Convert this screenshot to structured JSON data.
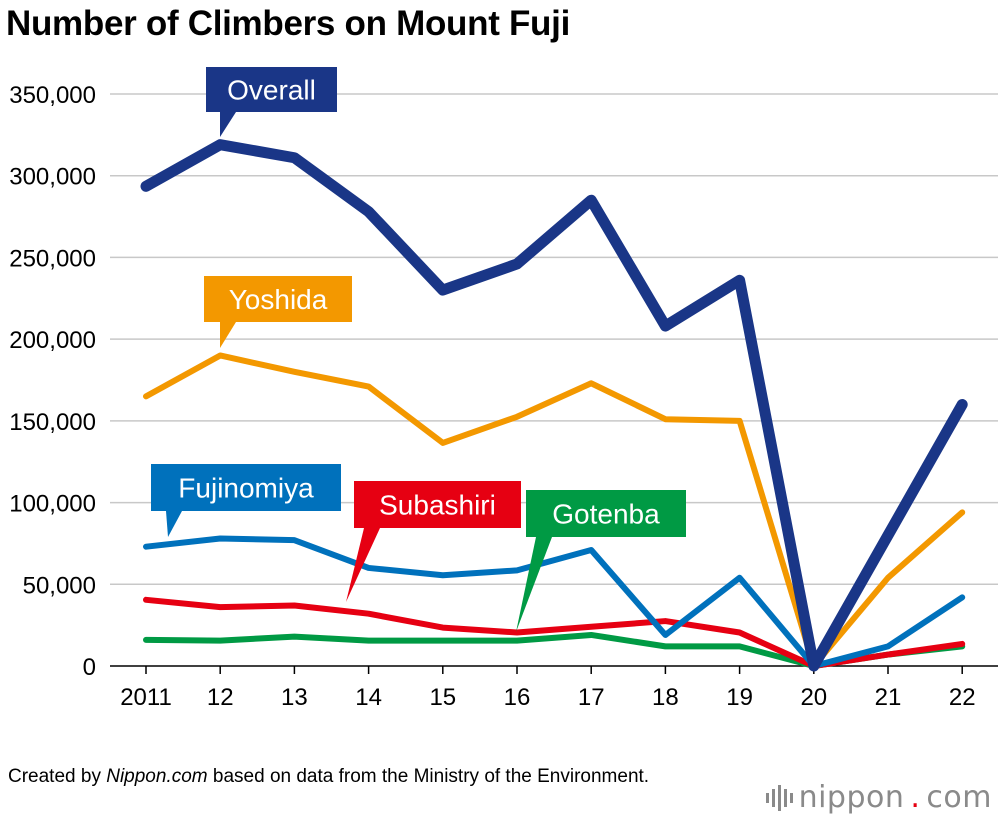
{
  "title": "Number of Climbers on Mount Fuji",
  "footer": {
    "prefix": "Created by ",
    "source": "Nippon.com",
    "suffix": " based on data from the Ministry of the Environment."
  },
  "brand": {
    "name": "nippon",
    "dot": ".",
    "tld": "com",
    "icon": "bars-icon"
  },
  "chart_data": {
    "type": "line",
    "title": "Number of Climbers on Mount Fuji",
    "xlabel": "",
    "ylabel": "",
    "categories": [
      "2011",
      "12",
      "13",
      "14",
      "15",
      "16",
      "17",
      "18",
      "19",
      "20",
      "21",
      "22"
    ],
    "ylim": [
      0,
      350000
    ],
    "yticks": [
      0,
      50000,
      100000,
      150000,
      200000,
      250000,
      300000,
      350000
    ],
    "ytick_labels": [
      "0",
      "50,000",
      "100,000",
      "150,000",
      "200,000",
      "250,000",
      "300,000",
      "350,000"
    ],
    "grid": true,
    "series": [
      {
        "name": "Gotenba",
        "color": "#009a44",
        "values": [
          16000,
          15500,
          18000,
          15500,
          15500,
          15500,
          19000,
          12000,
          12000,
          0,
          7000,
          12000
        ]
      },
      {
        "name": "Subashiri",
        "color": "#e60012",
        "values": [
          40500,
          36000,
          37000,
          32000,
          23500,
          20500,
          24000,
          27500,
          20500,
          0,
          7000,
          13500
        ]
      },
      {
        "name": "Fujinomiya",
        "color": "#0071bc",
        "values": [
          73000,
          78000,
          77000,
          60000,
          55500,
          58500,
          71000,
          19000,
          54000,
          0,
          12000,
          42000
        ]
      },
      {
        "name": "Yoshida",
        "color": "#f39800",
        "values": [
          165000,
          190000,
          180000,
          171000,
          136500,
          152500,
          173000,
          151000,
          150000,
          0,
          54000,
          94000
        ]
      },
      {
        "name": "Overall",
        "color": "#1a3687",
        "values": [
          293500,
          319000,
          311000,
          278000,
          230000,
          246000,
          285000,
          208000,
          236000,
          0,
          80000,
          160000
        ]
      }
    ]
  }
}
